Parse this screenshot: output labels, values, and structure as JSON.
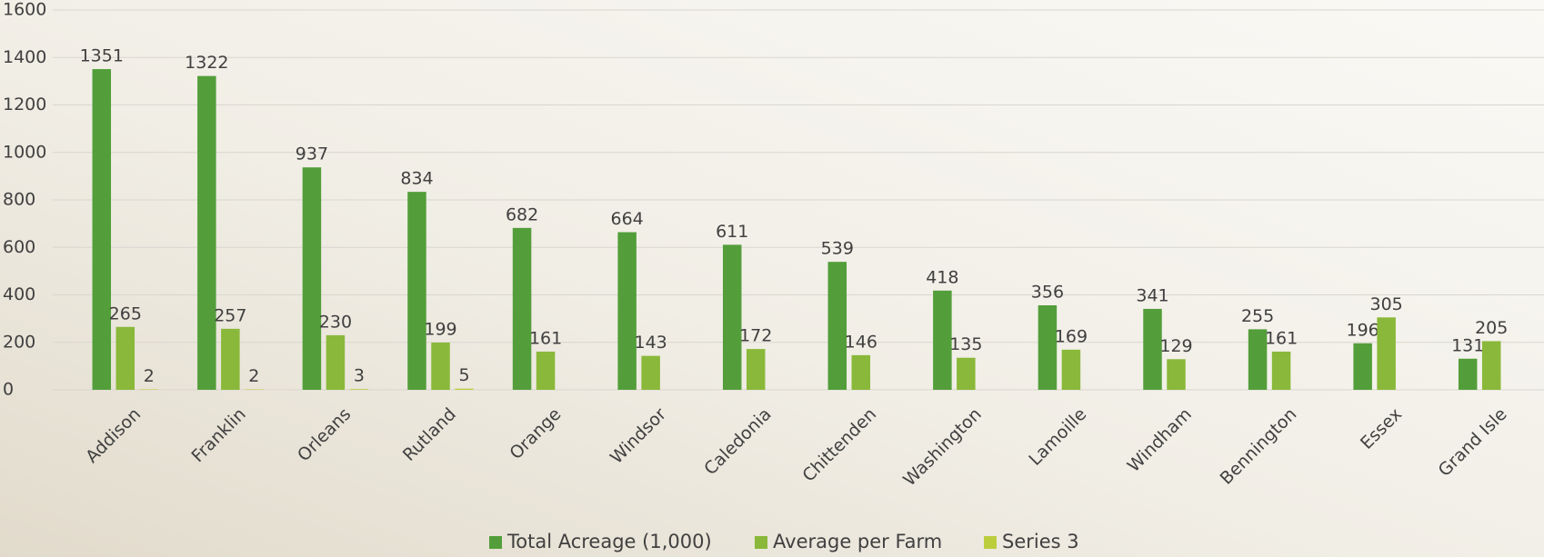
{
  "chart_data": {
    "type": "bar",
    "categories": [
      "Addison",
      "Franklin",
      "Orleans",
      "Rutland",
      "Orange",
      "Windsor",
      "Caledonia",
      "Chittenden",
      "Washington",
      "Lamoille",
      "Windham",
      "Bennington",
      "Essex",
      "Grand Isle"
    ],
    "series": [
      {
        "name": "Total Acreage (1,000)",
        "color": "#539e3a",
        "values": [
          1351,
          1322,
          937,
          834,
          682,
          664,
          611,
          539,
          418,
          356,
          341,
          255,
          196,
          131
        ]
      },
      {
        "name": "Average per Farm",
        "color": "#8ab83a",
        "values": [
          265,
          257,
          230,
          199,
          161,
          143,
          172,
          146,
          135,
          169,
          129,
          161,
          305,
          205
        ]
      },
      {
        "name": "Series 3",
        "color": "#bccd3c",
        "values": [
          2,
          2,
          3,
          5,
          null,
          null,
          null,
          null,
          null,
          null,
          null,
          null,
          null,
          null
        ]
      }
    ],
    "ylim": [
      0,
      1600
    ],
    "yticks": [
      0,
      200,
      400,
      600,
      800,
      1000,
      1200,
      1400,
      1600
    ],
    "grid": true,
    "legend": "bottom"
  }
}
